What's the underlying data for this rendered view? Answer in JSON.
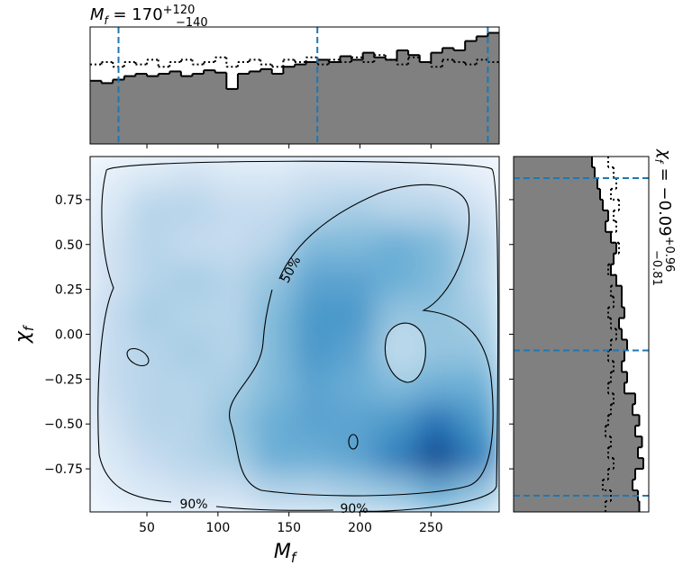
{
  "chart_data": {
    "type": "corner",
    "top_title": {
      "symbol": "M",
      "symbol_sub": "f",
      "text": " = 170",
      "upper": "+120",
      "lower": "−140"
    },
    "right_title": {
      "symbol": "χ",
      "symbol_sub": "f",
      "text": " = −0.09",
      "upper": "+0.96",
      "lower": "−0.81"
    },
    "xlabel": {
      "symbol": "M",
      "sub": "f"
    },
    "ylabel": {
      "symbol": "χ",
      "sub": "f"
    },
    "xlim": [
      10,
      298
    ],
    "ylim": [
      -0.99,
      0.99
    ],
    "xticks": [
      50,
      100,
      150,
      200,
      250
    ],
    "yticks": [
      {
        "value": -0.75,
        "label": "−0.75"
      },
      {
        "value": -0.5,
        "label": "−0.50"
      },
      {
        "value": -0.25,
        "label": "−0.25"
      },
      {
        "value": 0,
        "label": "0.00"
      },
      {
        "value": 0.25,
        "label": "0.25"
      },
      {
        "value": 0.5,
        "label": "0.50"
      },
      {
        "value": 0.75,
        "label": "0.75"
      }
    ],
    "density": [
      [
        0.1,
        0.15,
        0.2,
        0.15,
        0.15,
        0.2,
        0.2,
        0.2,
        0.15,
        0.1
      ],
      [
        0.15,
        0.3,
        0.3,
        0.25,
        0.25,
        0.3,
        0.35,
        0.3,
        0.3,
        0.2
      ],
      [
        0.2,
        0.3,
        0.25,
        0.25,
        0.3,
        0.45,
        0.45,
        0.5,
        0.45,
        0.3
      ],
      [
        0.2,
        0.3,
        0.35,
        0.3,
        0.4,
        0.55,
        0.55,
        0.5,
        0.45,
        0.3
      ],
      [
        0.25,
        0.35,
        0.3,
        0.3,
        0.45,
        0.6,
        0.6,
        0.4,
        0.4,
        0.35
      ],
      [
        0.25,
        0.3,
        0.35,
        0.3,
        0.45,
        0.6,
        0.55,
        0.35,
        0.4,
        0.4
      ],
      [
        0.25,
        0.3,
        0.3,
        0.35,
        0.45,
        0.55,
        0.5,
        0.45,
        0.5,
        0.5
      ],
      [
        0.2,
        0.3,
        0.3,
        0.4,
        0.5,
        0.55,
        0.55,
        0.6,
        0.75,
        0.6
      ],
      [
        0.15,
        0.25,
        0.3,
        0.35,
        0.5,
        0.5,
        0.55,
        0.7,
        0.9,
        0.7
      ],
      [
        0.1,
        0.15,
        0.2,
        0.2,
        0.3,
        0.3,
        0.35,
        0.4,
        0.5,
        0.4
      ]
    ],
    "contour_labels": [
      "50%",
      "90%",
      "90%"
    ],
    "top_hist": {
      "bins": [
        10,
        18,
        26,
        34,
        42,
        50,
        58,
        66,
        74,
        82,
        90,
        98,
        106,
        114,
        122,
        130,
        138,
        146,
        154,
        162,
        170,
        178,
        186,
        194,
        202,
        210,
        218,
        226,
        234,
        242,
        250,
        258,
        266,
        274,
        282,
        290,
        298
      ],
      "ylim": [
        0,
        1
      ],
      "posterior": [
        0.54,
        0.52,
        0.55,
        0.58,
        0.6,
        0.58,
        0.6,
        0.62,
        0.58,
        0.6,
        0.63,
        0.61,
        0.47,
        0.6,
        0.62,
        0.64,
        0.6,
        0.66,
        0.68,
        0.7,
        0.72,
        0.7,
        0.75,
        0.72,
        0.78,
        0.74,
        0.72,
        0.8,
        0.76,
        0.7,
        0.78,
        0.82,
        0.8,
        0.88,
        0.92,
        0.95
      ],
      "prior": [
        0.68,
        0.7,
        0.66,
        0.7,
        0.68,
        0.72,
        0.66,
        0.7,
        0.72,
        0.68,
        0.7,
        0.74,
        0.66,
        0.7,
        0.72,
        0.68,
        0.66,
        0.72,
        0.7,
        0.74,
        0.68,
        0.72,
        0.7,
        0.74,
        0.7,
        0.76,
        0.72,
        0.68,
        0.74,
        0.7,
        0.66,
        0.72,
        0.7,
        0.68,
        0.72,
        0.7
      ],
      "quantiles": [
        30,
        170,
        290
      ]
    },
    "right_hist": {
      "bins": [
        -0.99,
        -0.93,
        -0.87,
        -0.81,
        -0.75,
        -0.69,
        -0.63,
        -0.57,
        -0.51,
        -0.45,
        -0.39,
        -0.33,
        -0.27,
        -0.21,
        -0.15,
        -0.09,
        -0.03,
        0.03,
        0.09,
        0.15,
        0.21,
        0.27,
        0.33,
        0.39,
        0.45,
        0.51,
        0.57,
        0.63,
        0.69,
        0.75,
        0.81,
        0.87,
        0.93,
        0.99
      ],
      "xlim": [
        0,
        1
      ],
      "posterior": [
        0.93,
        0.92,
        0.88,
        0.9,
        0.96,
        0.92,
        0.95,
        0.9,
        0.93,
        0.88,
        0.9,
        0.82,
        0.84,
        0.8,
        0.82,
        0.84,
        0.8,
        0.78,
        0.82,
        0.8,
        0.8,
        0.76,
        0.72,
        0.74,
        0.76,
        0.72,
        0.68,
        0.7,
        0.66,
        0.64,
        0.62,
        0.6,
        0.58
      ],
      "prior": [
        0.68,
        0.72,
        0.66,
        0.7,
        0.74,
        0.7,
        0.72,
        0.68,
        0.7,
        0.72,
        0.74,
        0.7,
        0.72,
        0.74,
        0.7,
        0.72,
        0.76,
        0.72,
        0.7,
        0.74,
        0.72,
        0.76,
        0.7,
        0.74,
        0.78,
        0.72,
        0.76,
        0.74,
        0.78,
        0.72,
        0.76,
        0.74,
        0.7
      ],
      "quantiles": [
        -0.9,
        -0.09,
        0.87
      ]
    }
  }
}
